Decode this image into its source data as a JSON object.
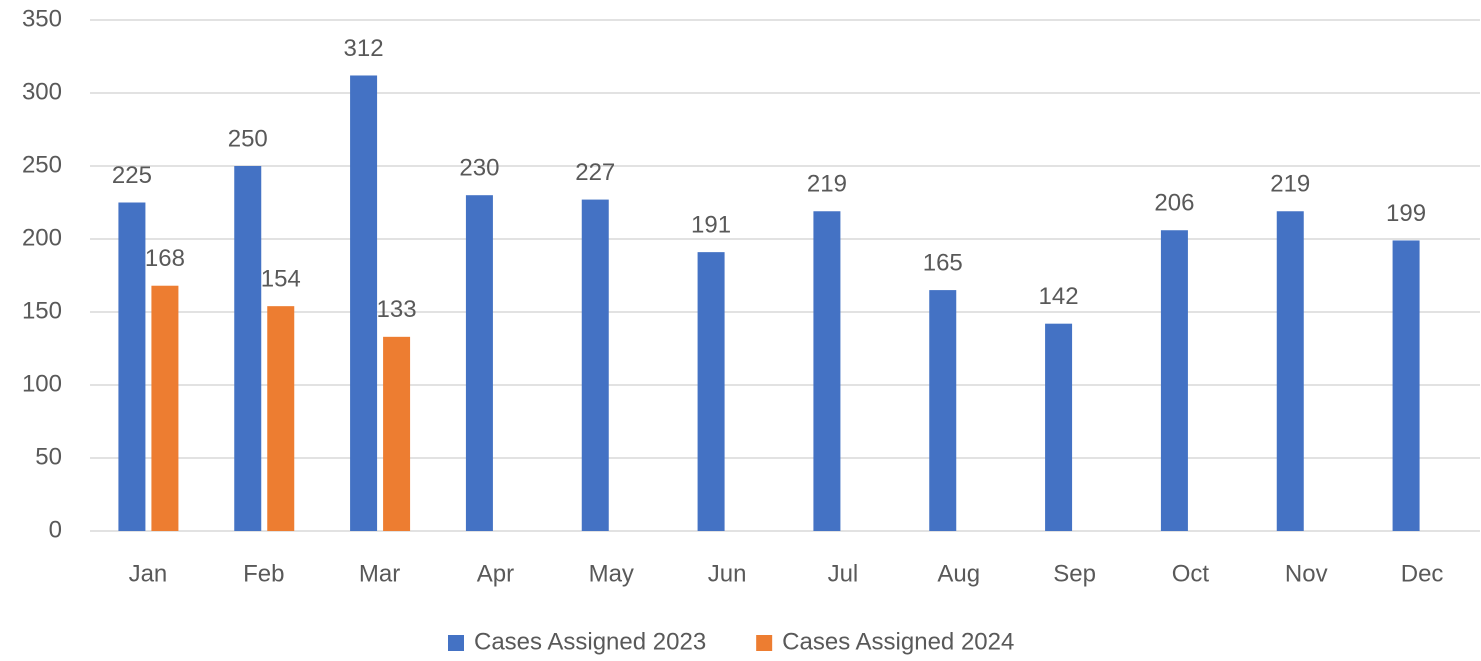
{
  "chart_data": {
    "type": "bar",
    "categories": [
      "Jan",
      "Feb",
      "Mar",
      "Apr",
      "May",
      "Jun",
      "Jul",
      "Aug",
      "Sep",
      "Oct",
      "Nov",
      "Dec"
    ],
    "series": [
      {
        "name": "Cases Assigned 2023",
        "color": "#4472c4",
        "values": [
          225,
          250,
          312,
          230,
          227,
          191,
          219,
          165,
          142,
          206,
          219,
          199
        ]
      },
      {
        "name": "Cases Assigned 2024",
        "color": "#ed7d31",
        "values": [
          168,
          154,
          133,
          null,
          null,
          null,
          null,
          null,
          null,
          null,
          null,
          null
        ]
      }
    ],
    "ylim": [
      0,
      350
    ],
    "yticks": [
      0,
      50,
      100,
      150,
      200,
      250,
      300,
      350
    ],
    "grid": true,
    "legend": "bottom"
  }
}
